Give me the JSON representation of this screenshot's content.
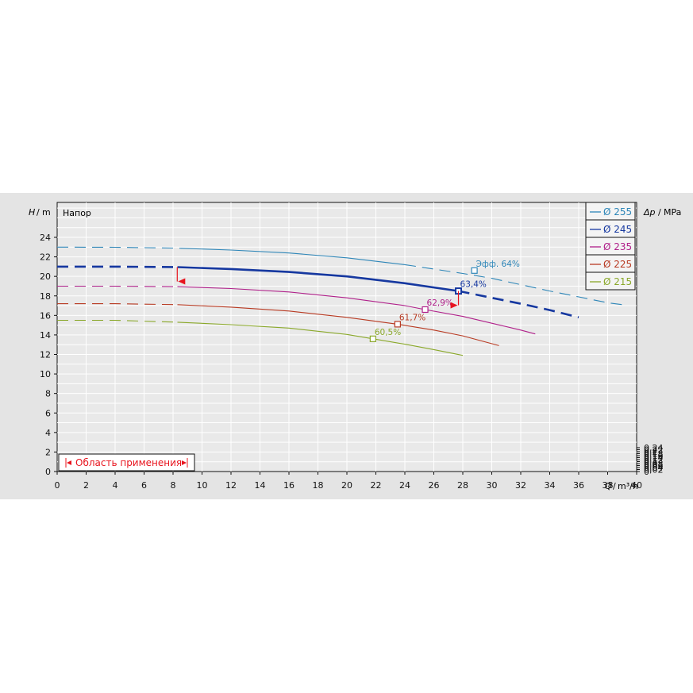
{
  "chart_data": {
    "type": "line",
    "y_label_var": "H",
    "y_label_unit": "m",
    "y_caption": "Напор",
    "x_label_var": "Q",
    "x_label_unit": "m³/h",
    "y2_label_var": "Δp",
    "y2_label_unit": "MPa",
    "xlim": [
      0,
      40
    ],
    "ylim": [
      0,
      24
    ],
    "x_ticks": [
      0,
      2,
      4,
      6,
      8,
      10,
      12,
      14,
      16,
      18,
      20,
      22,
      24,
      26,
      28,
      30,
      32,
      34,
      36,
      38,
      40
    ],
    "y_ticks": [
      0,
      2,
      4,
      6,
      8,
      10,
      12,
      14,
      16,
      18,
      20,
      22,
      24
    ],
    "y2_ticks": [
      "0",
      "0,02",
      "0,04",
      "0,06",
      "0,08",
      "0,1",
      "0,12",
      "0,14",
      "0,16",
      "0,18",
      "0,2",
      "0,22",
      "0,24"
    ],
    "y2_per_y": 0.0981,
    "grid": true,
    "legend_position": "top-right",
    "series": [
      {
        "name": "Ø 255",
        "color": "#2e86b8",
        "dashed_before": 8.5,
        "solid_until": 24,
        "points": [
          [
            0,
            23
          ],
          [
            4,
            22.98
          ],
          [
            8,
            22.9
          ],
          [
            12,
            22.7
          ],
          [
            16,
            22.4
          ],
          [
            20,
            21.9
          ],
          [
            24,
            21.2
          ],
          [
            28,
            20.3
          ],
          [
            30,
            19.8
          ],
          [
            32,
            19.15
          ],
          [
            34,
            18.5
          ],
          [
            36,
            17.9
          ],
          [
            38,
            17.3
          ],
          [
            39,
            17.1
          ]
        ],
        "bep": {
          "x": 28.8,
          "y": 20.6,
          "label": "Эфф.  64%"
        }
      },
      {
        "name": "Ø 245",
        "color": "#1638a0",
        "bold": true,
        "dashed_before": 8.3,
        "solid_until": 27.7,
        "points": [
          [
            0,
            21
          ],
          [
            4,
            21
          ],
          [
            8.3,
            20.95
          ],
          [
            12,
            20.75
          ],
          [
            16,
            20.45
          ],
          [
            20,
            20
          ],
          [
            24,
            19.3
          ],
          [
            27.7,
            18.5
          ],
          [
            30,
            17.8
          ],
          [
            32,
            17.2
          ],
          [
            34,
            16.55
          ],
          [
            36,
            15.8
          ]
        ],
        "bep": {
          "x": 27.7,
          "y": 18.5,
          "label": "63,4%"
        }
      },
      {
        "name": "Ø 235",
        "color": "#b0208a",
        "dashed_before": 8.3,
        "solid_until": 33,
        "points": [
          [
            0,
            19
          ],
          [
            4,
            19
          ],
          [
            8.3,
            18.95
          ],
          [
            12,
            18.75
          ],
          [
            16,
            18.4
          ],
          [
            20,
            17.8
          ],
          [
            24,
            17
          ],
          [
            25.4,
            16.6
          ],
          [
            28,
            15.9
          ],
          [
            30,
            15.2
          ],
          [
            32,
            14.5
          ],
          [
            33,
            14.1
          ]
        ],
        "bep": {
          "x": 25.4,
          "y": 16.6,
          "label": "62,9%"
        }
      },
      {
        "name": "Ø 225",
        "color": "#b83a22",
        "dashed_before": 8.3,
        "solid_until": 30.5,
        "points": [
          [
            0,
            17.2
          ],
          [
            4,
            17.2
          ],
          [
            8.3,
            17.1
          ],
          [
            12,
            16.85
          ],
          [
            16,
            16.45
          ],
          [
            20,
            15.8
          ],
          [
            23.5,
            15.1
          ],
          [
            26,
            14.5
          ],
          [
            28,
            13.9
          ],
          [
            30.5,
            12.9
          ]
        ],
        "bep": {
          "x": 23.5,
          "y": 15.1,
          "label": "61,7%"
        }
      },
      {
        "name": "Ø 215",
        "color": "#8aa82a",
        "dashed_before": 8.3,
        "solid_until": 28,
        "points": [
          [
            0,
            15.5
          ],
          [
            4,
            15.5
          ],
          [
            8.3,
            15.3
          ],
          [
            12,
            15.05
          ],
          [
            16,
            14.7
          ],
          [
            20,
            14.05
          ],
          [
            21.8,
            13.6
          ],
          [
            24,
            13.05
          ],
          [
            26,
            12.5
          ],
          [
            28,
            11.9
          ]
        ],
        "bep": {
          "x": 21.8,
          "y": 13.6,
          "label": "60,5%"
        }
      }
    ],
    "operating_range": {
      "label": "Область применения",
      "q_min": 8.4,
      "q_max": 27.7,
      "color": "#e8141e"
    }
  }
}
